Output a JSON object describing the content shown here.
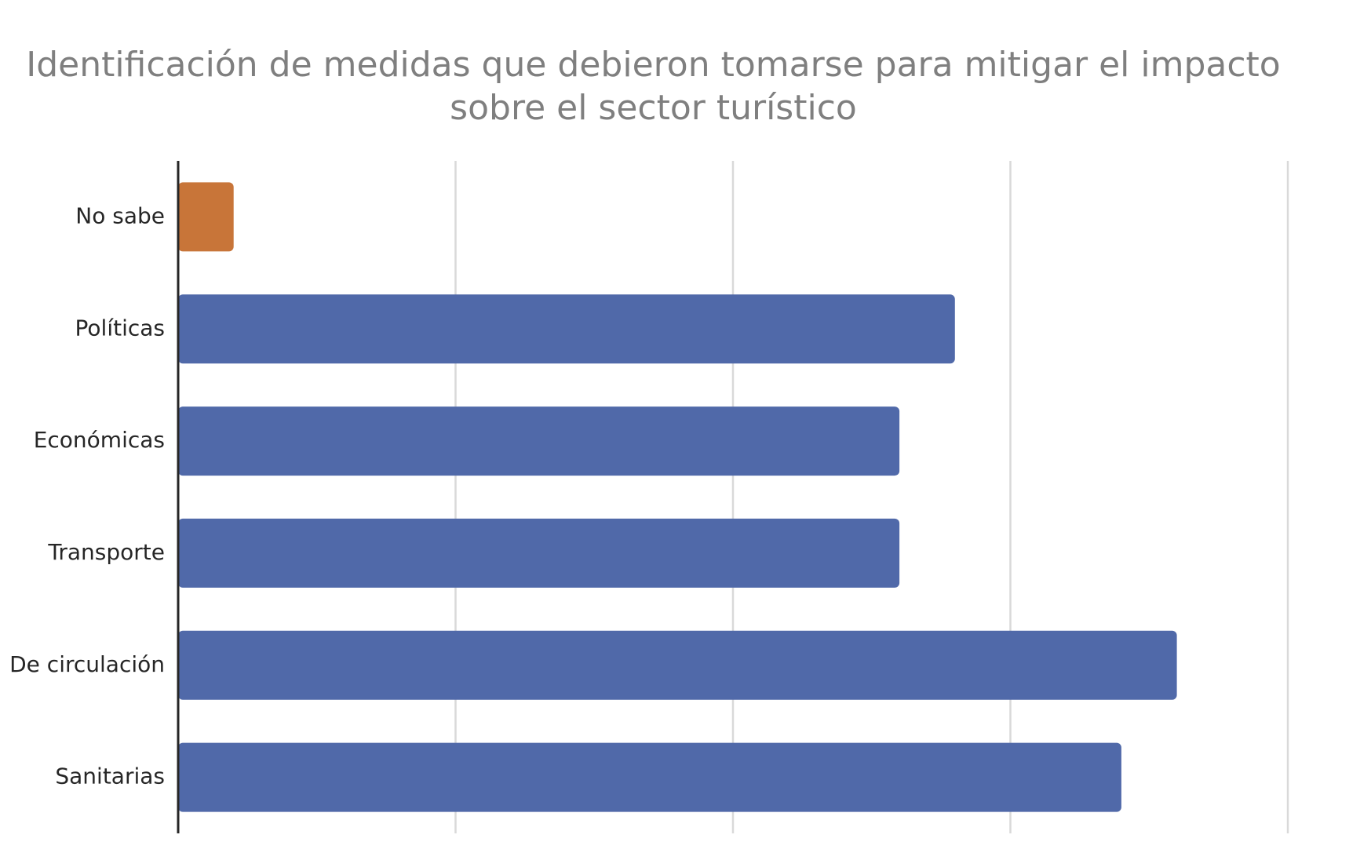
{
  "chart_data": {
    "type": "bar",
    "orientation": "horizontal",
    "title_lines": [
      "Identificación de medidas que debieron tomarse para mitigar el impacto",
      "sobre el sector turístico"
    ],
    "categories": [
      "No sabe",
      "Políticas",
      "Económicas",
      "Transporte",
      "De circulación",
      "Sanitarias"
    ],
    "values": [
      0.5,
      7,
      6.5,
      6.5,
      9,
      8.5
    ],
    "bar_colors": [
      "#C87539",
      "#5069A9",
      "#5069A9",
      "#5069A9",
      "#5069A9",
      "#5069A9"
    ],
    "xlim": [
      0,
      10
    ],
    "x_gridlines": [
      0,
      2.5,
      5,
      7.5,
      10
    ],
    "grid": true,
    "tick_labels_visible": false,
    "legend": "none"
  }
}
